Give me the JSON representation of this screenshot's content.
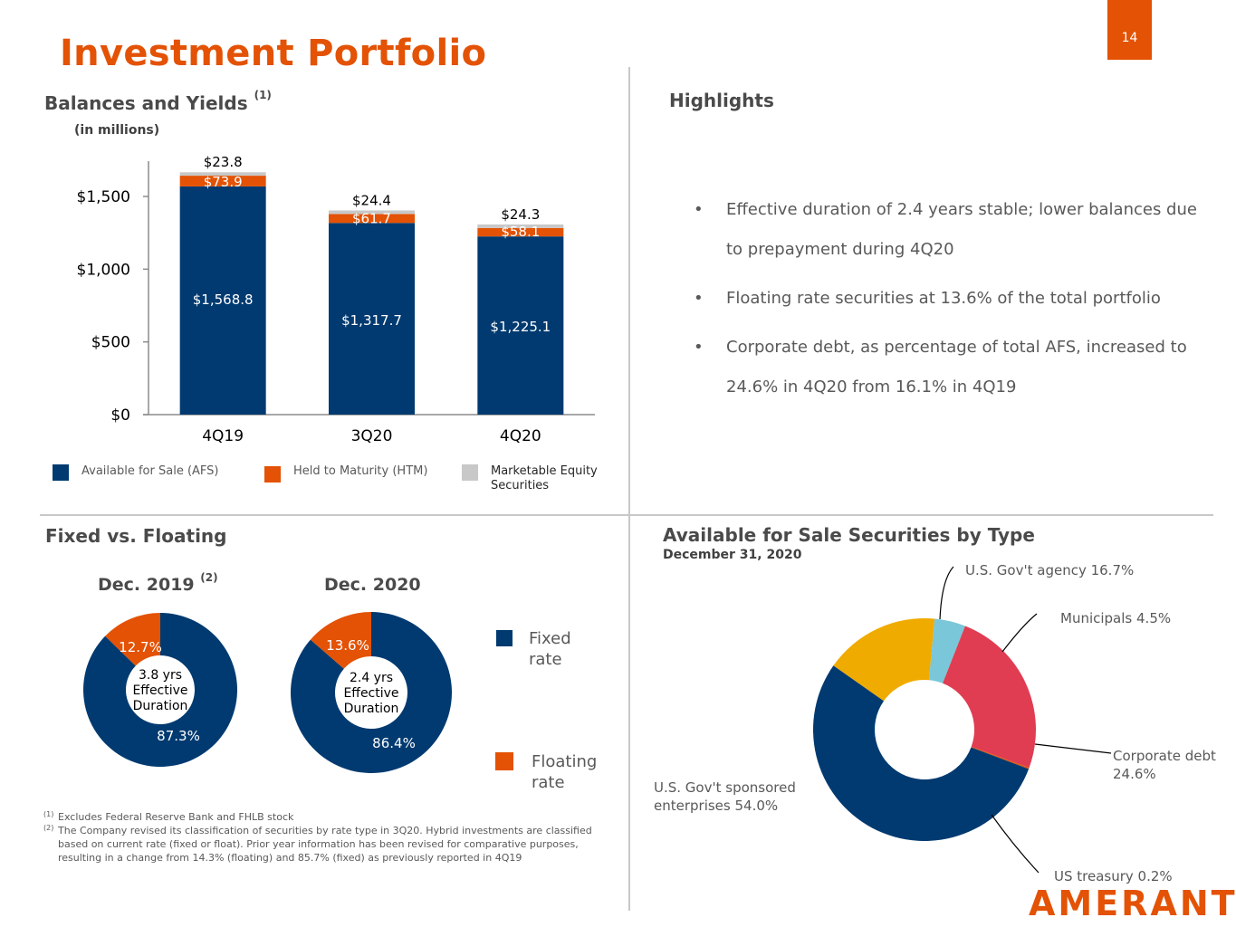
{
  "page": {
    "title": "Investment Portfolio",
    "page_number": "14",
    "brand_logo": "AMERANT",
    "colors": {
      "brand_orange": "#E35205",
      "navy": "#003A70",
      "gray": "#C8C8C8",
      "gold": "#F0AB00",
      "light_blue": "#79C7D8",
      "red": "#E03C52"
    }
  },
  "balances": {
    "heading": "Balances and Yields",
    "heading_sup": "(1)",
    "units": "(in millions)",
    "legend": [
      {
        "label": "Available for Sale (AFS)",
        "color": "#003A70"
      },
      {
        "label": "Held to Maturity (HTM)",
        "color": "#E35205"
      },
      {
        "label": "Marketable Equity Securities",
        "color": "#C8C8C8"
      }
    ]
  },
  "highlights": {
    "heading": "Highlights",
    "items": [
      "Effective duration of 2.4 years stable; lower balances due to prepayment during 4Q20",
      "Floating rate securities at 13.6% of the total portfolio",
      "Corporate debt, as percentage of total AFS, increased to 24.6% in 4Q20 from 16.1% in 4Q19"
    ]
  },
  "fixed_floating": {
    "heading": "Fixed vs. Floating",
    "legend": [
      {
        "label": "Fixed rate",
        "color": "#003A70"
      },
      {
        "label": "Floating rate",
        "color": "#E35205"
      }
    ]
  },
  "afs_type": {
    "heading": "Available for Sale Securities by Type",
    "subheading": "December 31, 2020"
  },
  "footnotes": [
    {
      "mark": "(1)",
      "text": "Excludes Federal Reserve Bank and FHLB stock"
    },
    {
      "mark": "(2)",
      "text": "The Company revised its classification of securities by rate type in 3Q20. Hybrid investments are classified based on current rate (fixed or float). Prior year information has been revised for comparative purposes, resulting in a change from 14.3% (floating) and 85.7% (fixed) as previously reported in 4Q19"
    }
  ],
  "chart_data": [
    {
      "type": "bar",
      "stacked": true,
      "title": "Balances and Yields",
      "xlabel": "",
      "ylabel": "",
      "categories": [
        "4Q19",
        "3Q20",
        "4Q20"
      ],
      "series": [
        {
          "name": "Available for Sale (AFS)",
          "values": [
            1568.8,
            1317.7,
            1225.1
          ],
          "labels": [
            "$1,568.8",
            "$1,317.7",
            "$1,225.1"
          ],
          "color": "#003A70"
        },
        {
          "name": "Held to Maturity (HTM)",
          "values": [
            73.9,
            61.7,
            58.1
          ],
          "labels": [
            "$73.9",
            "$61.7",
            "$58.1"
          ],
          "color": "#E35205"
        },
        {
          "name": "Marketable Equity Securities",
          "values": [
            23.8,
            24.4,
            24.3
          ],
          "labels": [
            "$23.8",
            "$24.4",
            "$24.3"
          ],
          "color": "#C8C8C8"
        }
      ],
      "ylim": [
        0,
        1700
      ],
      "yticks": [
        0,
        500,
        1000,
        1500
      ],
      "ytick_labels": [
        "$0",
        "$500",
        "$1,000",
        "$1,500"
      ],
      "grid": false,
      "legend": "bottom"
    },
    {
      "type": "pie",
      "donut": true,
      "title": "Dec. 2019",
      "title_sup": "(2)",
      "center_text": [
        "3.8 yrs",
        "Effective",
        "Duration"
      ],
      "slices": [
        {
          "name": "Fixed rate",
          "value": 87.3,
          "label": "87.3%",
          "color": "#003A70"
        },
        {
          "name": "Floating rate",
          "value": 12.7,
          "label": "12.7%",
          "color": "#E35205"
        }
      ]
    },
    {
      "type": "pie",
      "donut": true,
      "title": "Dec. 2020",
      "center_text": [
        "2.4 yrs",
        "Effective",
        "Duration"
      ],
      "slices": [
        {
          "name": "Fixed rate",
          "value": 86.4,
          "label": "86.4%",
          "color": "#003A70"
        },
        {
          "name": "Floating rate",
          "value": 13.6,
          "label": "13.6%",
          "color": "#E35205"
        }
      ]
    },
    {
      "type": "pie",
      "donut": true,
      "title": "Available for Sale Securities by Type",
      "subtitle": "December 31, 2020",
      "slices": [
        {
          "name": "U.S. Gov't agency",
          "value": 16.7,
          "label": "U.S. Gov't agency 16.7%",
          "color": "#F0AB00"
        },
        {
          "name": "Municipals",
          "value": 4.5,
          "label": "Municipals 4.5%",
          "color": "#79C7D8"
        },
        {
          "name": "Corporate debt",
          "value": 24.6,
          "label": "Corporate debt 24.6%",
          "color": "#E03C52"
        },
        {
          "name": "US treasury",
          "value": 0.2,
          "label": "US treasury 0.2%",
          "color": "#E35205"
        },
        {
          "name": "U.S. Gov't sponsored enterprises",
          "value": 54.0,
          "label": "U.S. Gov't sponsored enterprises 54.0%",
          "color": "#003A70"
        }
      ]
    }
  ]
}
